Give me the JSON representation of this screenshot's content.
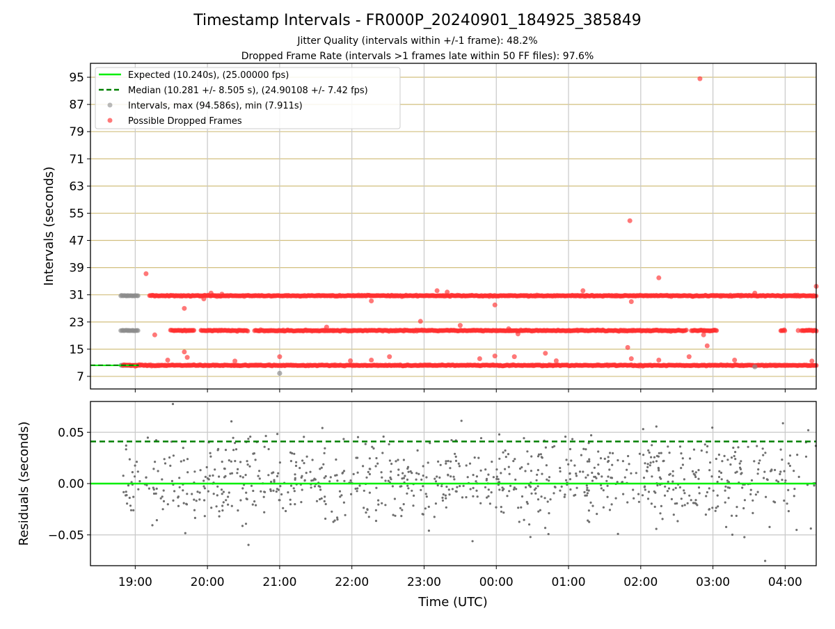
{
  "chart_data": [
    {
      "type": "scatter",
      "title": "Timestamp Intervals - FR000P_20240901_184925_385849",
      "subtitle_lines": [
        "Jitter Quality (intervals within +/-1 frame): 48.2%",
        "Dropped Frame Rate (intervals >1 frames late within 50 FF files): 97.6%"
      ],
      "ylabel": "Intervals (seconds)",
      "xlim_hours": [
        -0.62,
        9.43
      ],
      "ylim": [
        3.3,
        99.1
      ],
      "y_ticks": [
        7,
        15,
        23,
        31,
        39,
        47,
        55,
        63,
        71,
        79,
        87,
        95
      ],
      "grid": true,
      "legend_position": "top-left",
      "legend": [
        {
          "label": "Expected (10.240s), (25.00000 fps)",
          "kind": "line",
          "color": "#00ee00"
        },
        {
          "label": "Median (10.281 +/- 8.505 s), (24.90108 +/- 7.42 fps)",
          "kind": "dashed",
          "color": "#007f00"
        },
        {
          "label": "Intervals, max (94.586s), min (7.911s)",
          "kind": "dot",
          "color": "#8c8c8c"
        },
        {
          "label": "Possible Dropped Frames",
          "kind": "dot",
          "color": "#ff4040"
        }
      ],
      "expected_value": 10.24,
      "median_value": 10.281,
      "bands": [
        {
          "level": 10.24,
          "start": -0.17,
          "end": 9.43,
          "color": "red",
          "note": "dense band"
        },
        {
          "level": 20.48,
          "start": 0.49,
          "end": 9.43,
          "color": "red",
          "note": "dense band with gaps"
        },
        {
          "level": 30.72,
          "start": 0.2,
          "end": 9.43,
          "color": "red",
          "note": "dense band"
        },
        {
          "level": 10.24,
          "start": -0.2,
          "end": 0.0,
          "color": "grey"
        },
        {
          "level": 20.48,
          "start": -0.2,
          "end": 0.05,
          "color": "grey"
        },
        {
          "level": 30.72,
          "start": -0.2,
          "end": 0.05,
          "color": "grey"
        }
      ],
      "outliers": [
        {
          "x": 0.15,
          "y": 37.2
        },
        {
          "x": 0.27,
          "y": 19.2
        },
        {
          "x": 0.68,
          "y": 27.0
        },
        {
          "x": 0.68,
          "y": 14.2
        },
        {
          "x": 0.72,
          "y": 12.6
        },
        {
          "x": 0.45,
          "y": 11.8
        },
        {
          "x": 0.95,
          "y": 29.8
        },
        {
          "x": 1.05,
          "y": 31.5
        },
        {
          "x": 1.2,
          "y": 31.2
        },
        {
          "x": 1.38,
          "y": 11.5
        },
        {
          "x": 2.0,
          "y": 12.8
        },
        {
          "x": 2.65,
          "y": 21.5
        },
        {
          "x": 2.98,
          "y": 11.6
        },
        {
          "x": 3.27,
          "y": 29.2
        },
        {
          "x": 3.27,
          "y": 11.8
        },
        {
          "x": 3.52,
          "y": 12.8
        },
        {
          "x": 3.95,
          "y": 23.2
        },
        {
          "x": 4.18,
          "y": 32.2
        },
        {
          "x": 4.32,
          "y": 31.8
        },
        {
          "x": 4.5,
          "y": 22.0
        },
        {
          "x": 4.77,
          "y": 12.2
        },
        {
          "x": 4.98,
          "y": 28.0
        },
        {
          "x": 4.98,
          "y": 13.0
        },
        {
          "x": 5.17,
          "y": 21.0
        },
        {
          "x": 5.25,
          "y": 12.8
        },
        {
          "x": 5.3,
          "y": 19.5
        },
        {
          "x": 5.68,
          "y": 13.8
        },
        {
          "x": 5.83,
          "y": 11.6
        },
        {
          "x": 6.2,
          "y": 32.2
        },
        {
          "x": 6.38,
          "y": 20.5
        },
        {
          "x": 6.82,
          "y": 15.5
        },
        {
          "x": 6.85,
          "y": 52.8
        },
        {
          "x": 6.87,
          "y": 29.0
        },
        {
          "x": 6.87,
          "y": 12.2
        },
        {
          "x": 7.17,
          "y": 20.5
        },
        {
          "x": 7.25,
          "y": 36.0
        },
        {
          "x": 7.25,
          "y": 11.8
        },
        {
          "x": 7.67,
          "y": 12.8
        },
        {
          "x": 7.72,
          "y": 30.5
        },
        {
          "x": 7.82,
          "y": 94.586
        },
        {
          "x": 7.87,
          "y": 19.2
        },
        {
          "x": 7.92,
          "y": 16.0
        },
        {
          "x": 8.3,
          "y": 11.8
        },
        {
          "x": 8.58,
          "y": 31.5
        },
        {
          "x": 9.18,
          "y": 20.5
        },
        {
          "x": 9.37,
          "y": 11.5
        },
        {
          "x": 9.43,
          "y": 33.5
        }
      ],
      "grey_outliers": [
        {
          "x": 2.0,
          "y": 7.911
        },
        {
          "x": 8.58,
          "y": 9.8
        }
      ]
    },
    {
      "type": "scatter",
      "ylabel": "Residuals (seconds)",
      "xlabel": "Time (UTC)",
      "xlim_hours": [
        -0.62,
        9.43
      ],
      "ylim": [
        -0.08,
        0.08
      ],
      "y_ticks": [
        "0.05",
        "0.00",
        "−0.05"
      ],
      "y_tick_values": [
        0.05,
        0.0,
        -0.05
      ],
      "x_ticks": [
        "19:00",
        "20:00",
        "21:00",
        "22:00",
        "23:00",
        "00:00",
        "01:00",
        "02:00",
        "03:00",
        "04:00"
      ],
      "x_tick_hours": [
        0,
        1,
        2,
        3,
        4,
        5,
        6,
        7,
        8,
        9
      ],
      "grid": true,
      "zero_line": 0.0,
      "median_line": 0.041,
      "residual_range": {
        "x_start": -0.17,
        "x_end": 9.43,
        "count": 900,
        "sd": 0.022,
        "min": -0.08,
        "max": 0.08
      }
    }
  ]
}
